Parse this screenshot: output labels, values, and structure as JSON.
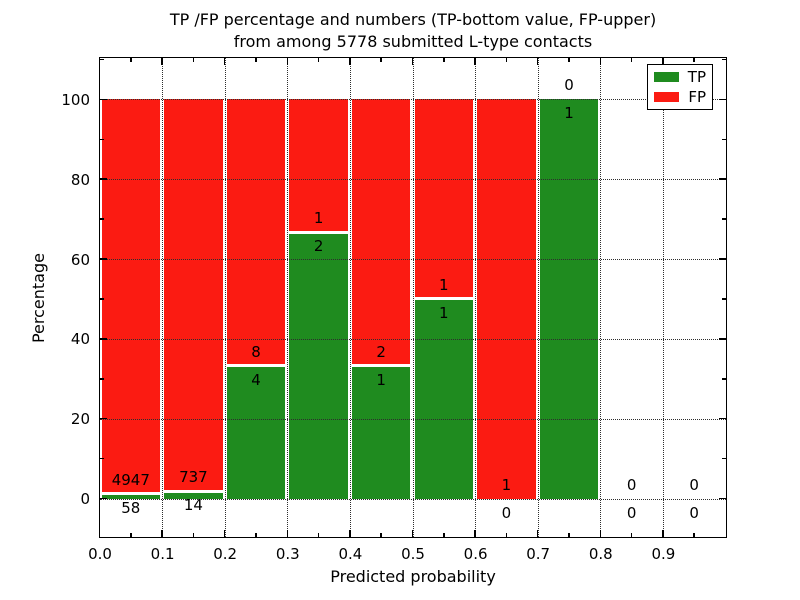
{
  "chart_data": {
    "type": "bar",
    "stacked": true,
    "title": "TP /FP percentage and numbers (TP-bottom value, FP-upper)\nfrom among 5778 submitted L-type contacts",
    "title_lines": [
      "TP /FP percentage and numbers (TP-bottom value, FP-upper)",
      "from among 5778 submitted L-type contacts"
    ],
    "total_submitted_contacts": 5778,
    "xlabel": "Predicted probability",
    "ylabel": "Percentage",
    "xlim": [
      0.0,
      1.0
    ],
    "ylim": [
      -10,
      110
    ],
    "grid": "dotted",
    "x_tick_labels": [
      "0.0",
      "0.1",
      "0.2",
      "0.3",
      "0.4",
      "0.5",
      "0.6",
      "0.7",
      "0.8",
      "0.9"
    ],
    "y_tick_values": [
      0,
      20,
      40,
      60,
      80,
      100
    ],
    "y_tick_labels": [
      "0",
      "20",
      "40",
      "60",
      "80",
      "100"
    ],
    "legend": {
      "position": "upper right",
      "entries": [
        {
          "label": "TP",
          "color": "#1f8b1f"
        },
        {
          "label": "FP",
          "color": "#fb1b12"
        }
      ]
    },
    "bins": [
      {
        "range": "0.0-0.1",
        "tp": 58,
        "fp": 4947,
        "tp_pct": 1.16
      },
      {
        "range": "0.1-0.2",
        "tp": 14,
        "fp": 737,
        "tp_pct": 1.86
      },
      {
        "range": "0.2-0.3",
        "tp": 4,
        "fp": 8,
        "tp_pct": 33.33
      },
      {
        "range": "0.3-0.4",
        "tp": 2,
        "fp": 1,
        "tp_pct": 66.67
      },
      {
        "range": "0.4-0.5",
        "tp": 1,
        "fp": 2,
        "tp_pct": 33.33
      },
      {
        "range": "0.5-0.6",
        "tp": 1,
        "fp": 1,
        "tp_pct": 50.0
      },
      {
        "range": "0.6-0.7",
        "tp": 0,
        "fp": 1,
        "tp_pct": 0.0
      },
      {
        "range": "0.7-0.8",
        "tp": 1,
        "fp": 0,
        "tp_pct": 100.0
      },
      {
        "range": "0.8-0.9",
        "tp": 0,
        "fp": 0,
        "tp_pct": null
      },
      {
        "range": "0.9-1.0",
        "tp": 0,
        "fp": 0,
        "tp_pct": null
      }
    ]
  }
}
